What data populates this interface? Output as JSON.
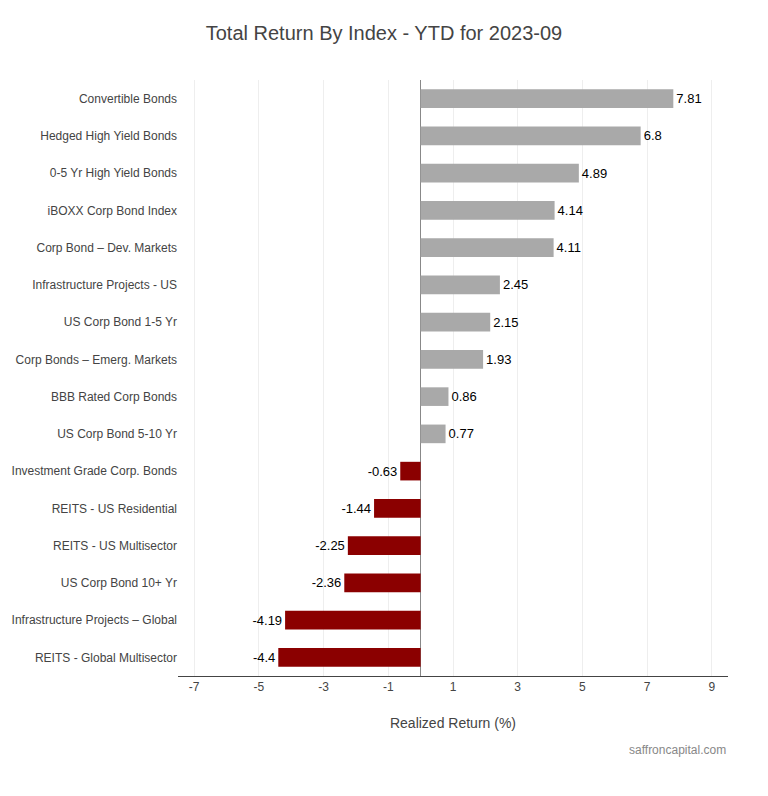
{
  "chart_data": {
    "type": "bar",
    "orientation": "horizontal",
    "title": "Total Return By Index - YTD for 2023-09",
    "xlabel": "Realized Return (%)",
    "categories": [
      "REITS - Global Multisector",
      "Infrastructure Projects – Global",
      "US Corp Bond 10+ Yr",
      "REITS - US Multisector",
      "REITS - US Residential",
      "Investment Grade Corp. Bonds",
      "US Corp Bond 5-10 Yr",
      "BBB Rated Corp Bonds",
      "Corp Bonds – Emerg. Markets",
      "US Corp Bond 1-5 Yr",
      "Infrastructure Projects - US",
      "Corp Bond – Dev. Markets",
      "iBOXX Corp Bond Index",
      "0-5 Yr High Yield Bonds",
      "Hedged High Yield Bonds",
      "Convertible Bonds"
    ],
    "values": [
      -4.4,
      -4.19,
      -2.36,
      -2.25,
      -1.44,
      -0.63,
      0.77,
      0.86,
      1.93,
      2.15,
      2.45,
      4.11,
      4.14,
      4.89,
      6.8,
      7.81
    ],
    "colors": [
      "#8B0000",
      "#8B0000",
      "#8B0000",
      "#8B0000",
      "#8B0000",
      "#8B0000",
      "#A9A9A9",
      "#A9A9A9",
      "#A9A9A9",
      "#A9A9A9",
      "#A9A9A9",
      "#A9A9A9",
      "#A9A9A9",
      "#A9A9A9",
      "#A9A9A9",
      "#A9A9A9"
    ],
    "xlim": [
      -7.5,
      9.5
    ],
    "xticks": [
      -7,
      -5,
      -3,
      -1,
      1,
      3,
      5,
      7,
      9
    ],
    "grid": true,
    "data_labels": true,
    "annotations": [
      "saffroncapital.com"
    ]
  }
}
